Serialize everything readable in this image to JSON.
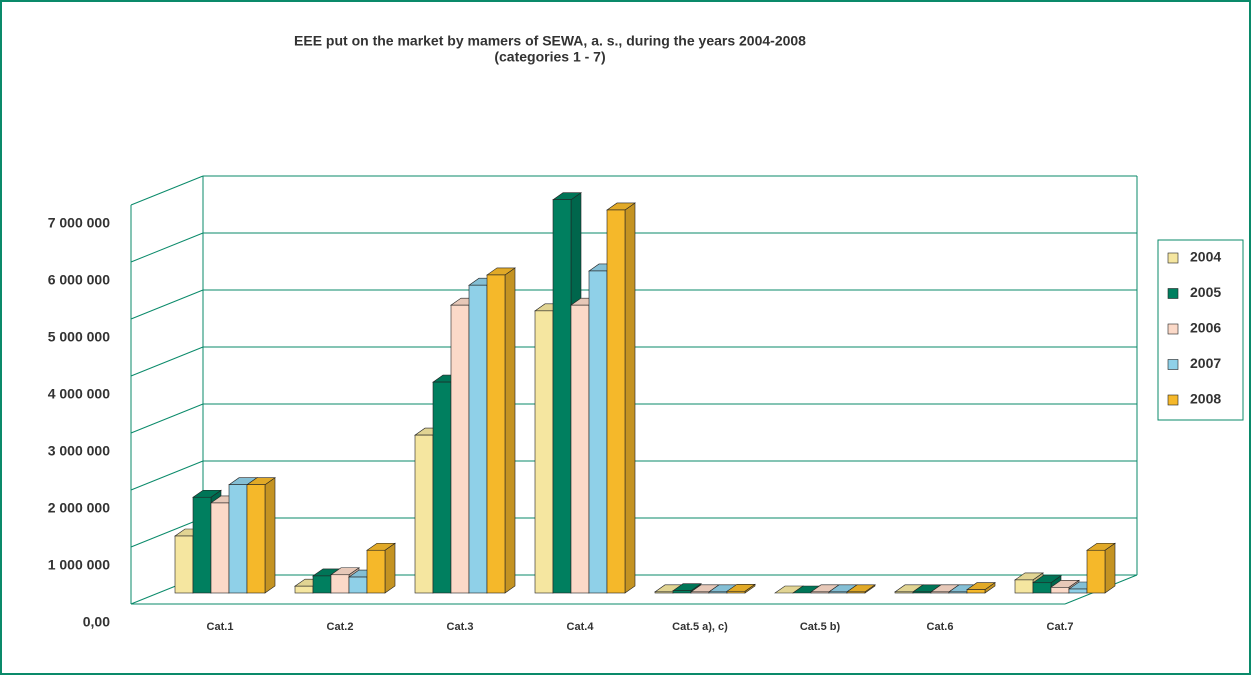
{
  "chart_data": {
    "type": "bar3d",
    "title": "EEE put on the market by mamers of SEWA, a. s., during the years 2004-2008",
    "subtitle": "(categories 1 - 7)",
    "categories": [
      "Cat.1",
      "Cat.2",
      "Cat.3",
      "Cat.4",
      "Cat.5 a), c)",
      "Cat.5 b)",
      "Cat.6",
      "Cat.7"
    ],
    "series": [
      {
        "name": "2004",
        "color": "#f5e6a0",
        "values": [
          1000000,
          120000,
          2770000,
          4950000,
          20000,
          0,
          20000,
          230000
        ]
      },
      {
        "name": "2005",
        "color": "#007f5f",
        "values": [
          1680000,
          300000,
          3700000,
          6900000,
          40000,
          0,
          20000,
          180000
        ]
      },
      {
        "name": "2006",
        "color": "#fbd9c8",
        "values": [
          1580000,
          320000,
          5050000,
          5050000,
          20000,
          20000,
          20000,
          100000
        ]
      },
      {
        "name": "2007",
        "color": "#8fd0e8",
        "values": [
          1900000,
          280000,
          5400000,
          5650000,
          20000,
          20000,
          20000,
          70000
        ]
      },
      {
        "name": "2008",
        "color": "#f5b82a",
        "values": [
          1900000,
          750000,
          5580000,
          6720000,
          30000,
          20000,
          60000,
          750000
        ]
      }
    ],
    "ylim": [
      0,
      7000000
    ],
    "yticks": [
      {
        "value": 0,
        "label": "0,00"
      },
      {
        "value": 1000000,
        "label": "1 000 000"
      },
      {
        "value": 2000000,
        "label": "2 000 000"
      },
      {
        "value": 3000000,
        "label": "3 000 000"
      },
      {
        "value": 4000000,
        "label": "4 000 000"
      },
      {
        "value": 5000000,
        "label": "5 000 000"
      },
      {
        "value": 6000000,
        "label": "6 000 000"
      },
      {
        "value": 7000000,
        "label": "7 000 000"
      }
    ],
    "grid": true,
    "legend": "right"
  }
}
